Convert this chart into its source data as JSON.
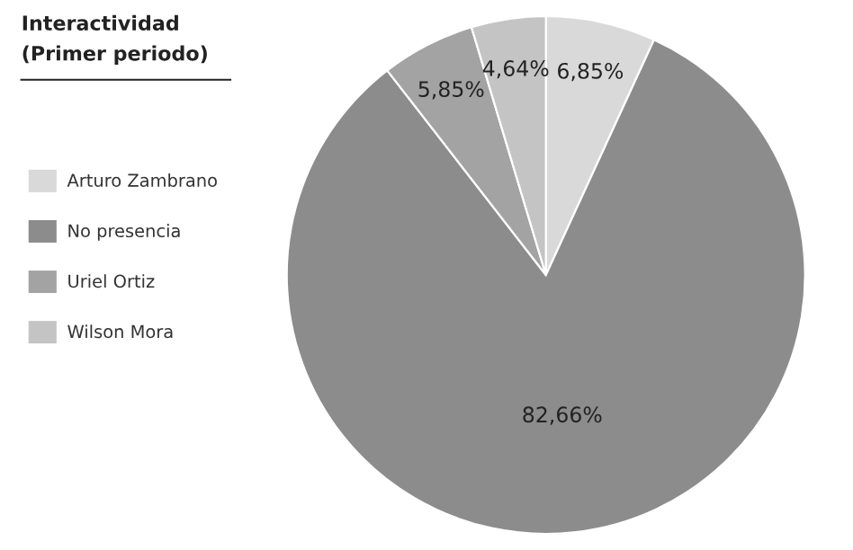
{
  "chart_data": {
    "type": "pie",
    "title": "Interactividad",
    "subtitle": "(Primer periodo)",
    "categories": [
      "Arturo Zambrano",
      "No presencia",
      "Uriel Ortiz",
      "Wilson Mora"
    ],
    "values": [
      6.85,
      82.66,
      5.85,
      4.64
    ],
    "value_labels": [
      "6,85%",
      "82,66%",
      "5,85%",
      "4,64%"
    ],
    "colors": [
      "#d9d9d9",
      "#8c8c8c",
      "#a3a3a3",
      "#c4c4c4"
    ],
    "legend": "left"
  }
}
